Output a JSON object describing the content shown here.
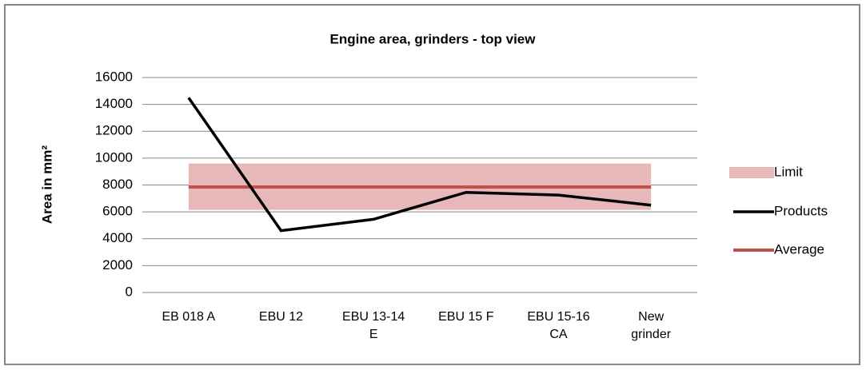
{
  "chart_data": {
    "type": "line",
    "title": "Engine area, grinders - top view",
    "y_label": "Area in mm²",
    "categories": [
      "EB 018 A",
      "EBU 12",
      "EBU 13-14 E",
      "EBU 15 F",
      "EBU 15-16 CA",
      "New grinder"
    ],
    "band": {
      "name": "Limit",
      "color": "#e6b9b8",
      "lower": [
        6150,
        6150,
        6150,
        6150,
        6150,
        6150
      ],
      "upper": [
        9600,
        9600,
        9600,
        9600,
        9600,
        9600
      ]
    },
    "series": [
      {
        "name": "Products",
        "color": "#000000",
        "values": [
          14500,
          4600,
          5450,
          7450,
          7250,
          6500
        ]
      },
      {
        "name": "Average",
        "color": "#c0504d",
        "values": [
          7850,
          7850,
          7850,
          7850,
          7850,
          7850
        ]
      }
    ],
    "ylim": [
      0,
      16000
    ],
    "yticks": [
      0,
      2000,
      4000,
      6000,
      8000,
      10000,
      12000,
      14000,
      16000
    ],
    "grid": true
  }
}
